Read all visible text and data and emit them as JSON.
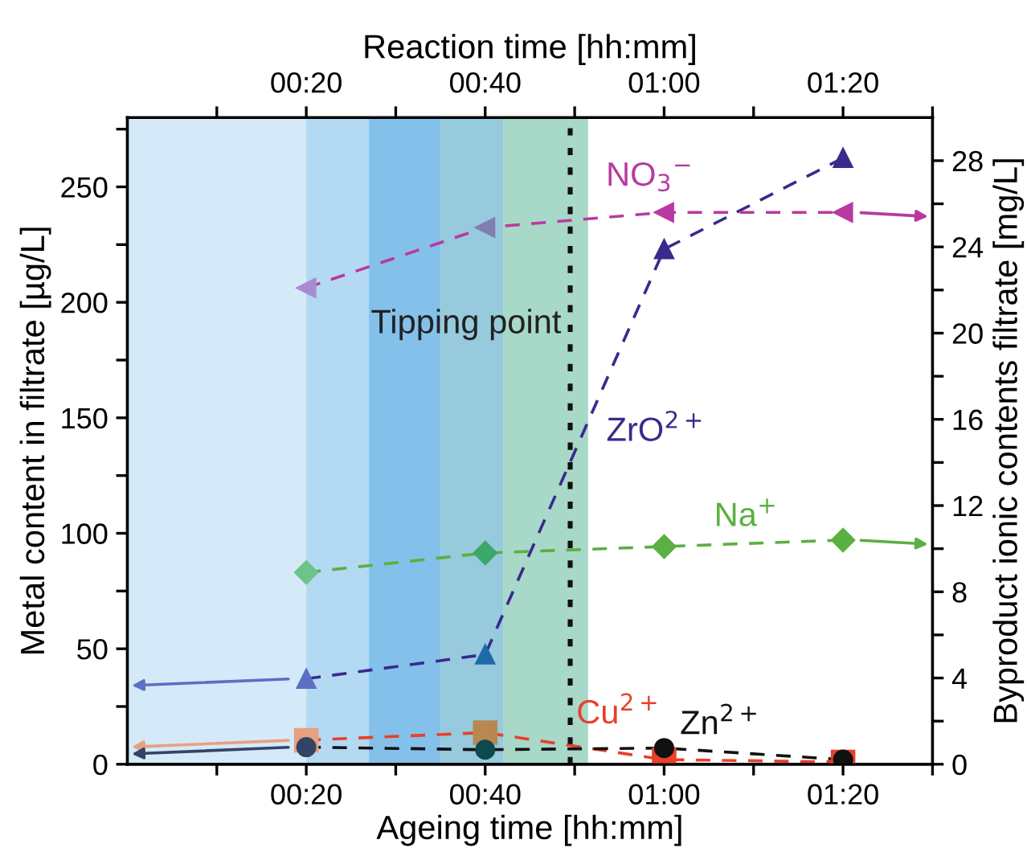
{
  "chart_data": {
    "type": "line",
    "xlabel": "Ageing time [hh:mm]",
    "x2label": "Reaction time [hh:mm]",
    "ylabel": "Metal content in filtrate [µg/L]",
    "y2label": "Byproduct ionic contents filtrate [mg/L]",
    "x": [
      20,
      40,
      60,
      80
    ],
    "xlim": [
      0,
      90
    ],
    "xticks": [
      {
        "value": 10,
        "label": null
      },
      {
        "value": 20,
        "label": "00:20"
      },
      {
        "value": 30,
        "label": null
      },
      {
        "value": 40,
        "label": "00:40"
      },
      {
        "value": 50,
        "label": null
      },
      {
        "value": 60,
        "label": "01:00"
      },
      {
        "value": 70,
        "label": null
      },
      {
        "value": 80,
        "label": "01:20"
      },
      {
        "value": 90,
        "label": null
      }
    ],
    "x2lim": [
      0,
      90
    ],
    "x2ticks": [
      {
        "value": 10,
        "label": null
      },
      {
        "value": 20,
        "label": "00:20"
      },
      {
        "value": 30,
        "label": null
      },
      {
        "value": 40,
        "label": "00:40"
      },
      {
        "value": 50,
        "label": null
      },
      {
        "value": 60,
        "label": "01:00"
      },
      {
        "value": 70,
        "label": null
      },
      {
        "value": 80,
        "label": "01:20"
      },
      {
        "value": 90,
        "label": null
      }
    ],
    "ylim": [
      0,
      280
    ],
    "yticks": [
      0,
      {
        "value": 25,
        "label": null
      },
      50,
      {
        "value": 75,
        "label": null
      },
      100,
      {
        "value": 125,
        "label": null
      },
      150,
      {
        "value": 175,
        "label": null
      },
      200,
      {
        "value": 225,
        "label": null
      },
      250,
      {
        "value": 275,
        "label": null
      }
    ],
    "y2lim": [
      0,
      30
    ],
    "y2ticks": [
      0,
      {
        "value": 2,
        "label": null
      },
      4,
      {
        "value": 6,
        "label": null
      },
      8,
      {
        "value": 10,
        "label": null
      },
      12,
      {
        "value": 14,
        "label": null
      },
      16,
      {
        "value": 18,
        "label": null
      },
      20,
      {
        "value": 22,
        "label": null
      },
      24,
      {
        "value": 26,
        "label": null
      },
      28
    ],
    "line_style": "dashed",
    "grid": false,
    "legend": false,
    "series": [
      {
        "name": "NO$_{3}$$^{−}$",
        "axis": "y2",
        "marker": "triangle-left",
        "color": "#b83aa0",
        "colors": [
          "#a98bcf",
          "#7f7fb0",
          "#b83aa0",
          "#b83aa0"
        ],
        "values": [
          22.1,
          24.9,
          25.6,
          25.6
        ]
      },
      {
        "name": "ZrO$^{2+}$",
        "axis": "y",
        "marker": "triangle",
        "color": "#3a2a8c",
        "colors": [
          "#5b6fc4",
          "#1f6aa8",
          "#3a2a8c",
          "#3a2a8c"
        ],
        "values": [
          37,
          47.5,
          223,
          262.5
        ]
      },
      {
        "name": "Na$^{+}$",
        "axis": "y2",
        "marker": "diamond",
        "color": "#5ab040",
        "colors": [
          "#6cc48a",
          "#3aa86a",
          "#5ab040",
          "#5ab040"
        ],
        "values": [
          8.9,
          9.8,
          10.1,
          10.4
        ]
      },
      {
        "name": "Cu$^{2+}$",
        "axis": "y",
        "marker": "square",
        "color": "#e8402a",
        "colors": [
          "#e8a080",
          "#b88850",
          "#e8402a",
          "#e8402a"
        ],
        "values": [
          10.4,
          13.7,
          2,
          1
        ]
      },
      {
        "name": "Zn$^{2+}$",
        "axis": "y",
        "marker": "circle",
        "color": "#111111",
        "colors": [
          "#334466",
          "#0d4a50",
          "#111111",
          "#111111"
        ],
        "values": [
          7.4,
          6.3,
          7,
          2
        ]
      }
    ],
    "ref_lines": [
      {
        "axis": "x",
        "value": 49.5,
        "label": "Tipping point",
        "color": "#111111",
        "line_style": "dotted"
      }
    ],
    "bands": [
      {
        "axis": "x",
        "from": 0,
        "to": 20,
        "color": "#d5eaf8"
      },
      {
        "axis": "x",
        "from": 20,
        "to": 27,
        "color": "#b3d9f3"
      },
      {
        "axis": "x",
        "from": 27,
        "to": 35,
        "color": "#84c1ea"
      },
      {
        "axis": "x",
        "from": 35,
        "to": 42,
        "color": "#96cadc"
      },
      {
        "axis": "x",
        "from": 42,
        "to": 51.5,
        "color": "#a8d8c8"
      }
    ]
  }
}
